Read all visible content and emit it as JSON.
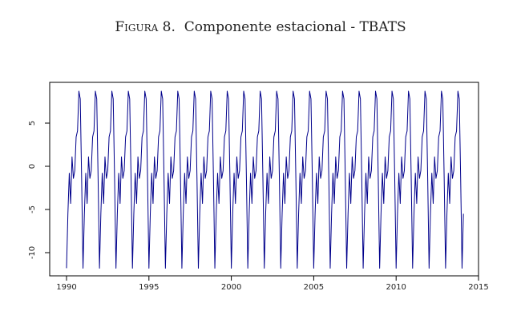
{
  "chart_data": {
    "type": "line",
    "title_prefix": "Figura 8.",
    "title": "Componente estacional - TBATS",
    "xlabel": "",
    "ylabel": "",
    "xlim": [
      1989.0,
      2015.0
    ],
    "ylim": [
      -12.5,
      10
    ],
    "x_ticks": [
      1990,
      1995,
      2000,
      2005,
      2010,
      2015
    ],
    "y_ticks": [
      -10,
      -5,
      0,
      5
    ],
    "grid": false,
    "line_color": "#00008B",
    "frequency": 12,
    "start": [
      1990,
      1
    ],
    "end": [
      2014,
      2
    ],
    "seasonal_pattern": [
      -11.8,
      -5.5,
      -0.8,
      -4.3,
      1.1,
      -1.4,
      -0.5,
      3.4,
      4.1,
      8.7,
      7.8,
      -1.5
    ]
  }
}
